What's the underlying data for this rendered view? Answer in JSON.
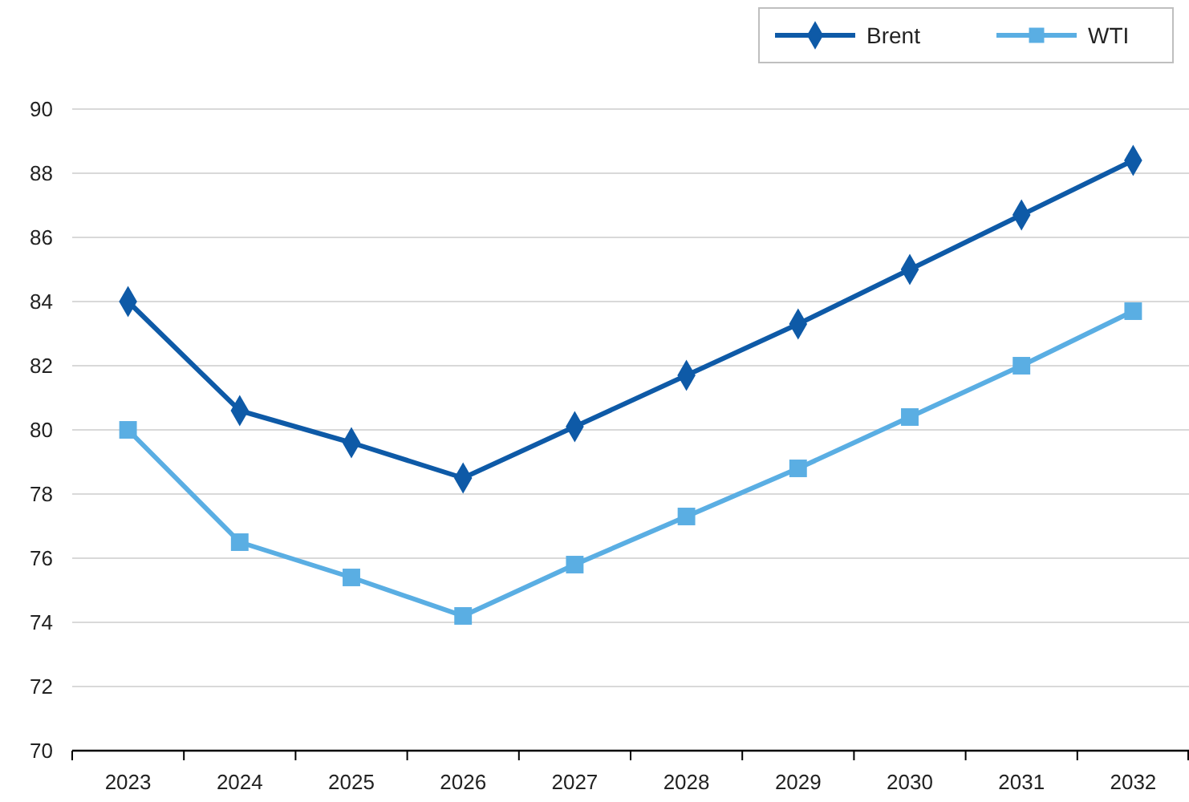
{
  "chart_data": {
    "type": "line",
    "categories": [
      "2023",
      "2024",
      "2025",
      "2026",
      "2027",
      "2028",
      "2029",
      "2030",
      "2031",
      "2032"
    ],
    "series": [
      {
        "name": "Brent",
        "color": "#0e5aa7",
        "marker": "diamond",
        "values": [
          84.0,
          80.6,
          79.6,
          78.5,
          80.1,
          81.7,
          83.3,
          85.0,
          86.7,
          88.4
        ]
      },
      {
        "name": "WTI",
        "color": "#5aaee3",
        "marker": "square",
        "values": [
          80.0,
          76.5,
          75.4,
          74.2,
          75.8,
          77.3,
          78.8,
          80.4,
          82.0,
          83.7
        ]
      }
    ],
    "ylim": [
      70,
      90
    ],
    "yticks": [
      70,
      72,
      74,
      76,
      78,
      80,
      82,
      84,
      86,
      88,
      90
    ],
    "grid": "y",
    "legend": "top right",
    "line_style": "solid"
  }
}
